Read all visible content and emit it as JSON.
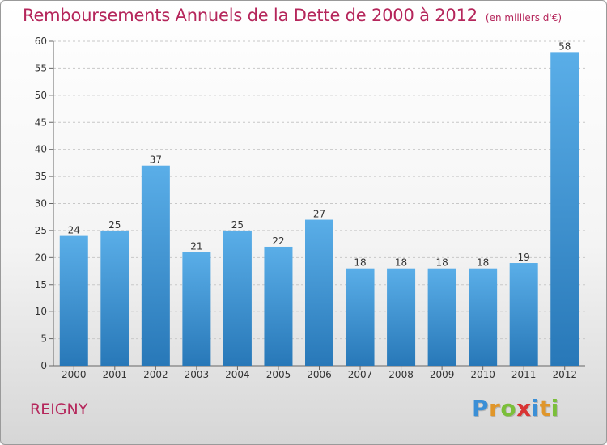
{
  "header": {
    "title": "Remboursements Annuels de la Dette de 2000 à 2012",
    "unit": "(en milliers d'€)"
  },
  "footer": {
    "town": "REIGNY",
    "logo_text": "Proxiti",
    "logo_letters": [
      {
        "ch": "P",
        "color": "#3b8fd6"
      },
      {
        "ch": "r",
        "color": "#e0962a"
      },
      {
        "ch": "o",
        "color": "#7bbf3a"
      },
      {
        "ch": "x",
        "color": "#d93434"
      },
      {
        "ch": "i",
        "color": "#3b8fd6"
      },
      {
        "ch": "t",
        "color": "#e0962a"
      },
      {
        "ch": "i",
        "color": "#7bbf3a"
      }
    ]
  },
  "colors": {
    "title": "#b5265b",
    "bar_top": "#5aaee8",
    "bar_bottom": "#2878b8",
    "grid": "#c8c8c8",
    "axis_text": "#333333"
  },
  "chart_data": {
    "type": "bar",
    "title": "Remboursements Annuels de la Dette de 2000 à 2012",
    "subtitle": "(en milliers d'€)",
    "categories": [
      "2000",
      "2001",
      "2002",
      "2003",
      "2004",
      "2005",
      "2006",
      "2007",
      "2008",
      "2009",
      "2010",
      "2011",
      "2012"
    ],
    "values": [
      24,
      25,
      37,
      21,
      25,
      22,
      27,
      18,
      18,
      18,
      18,
      19,
      58
    ],
    "ylim": [
      0,
      60
    ],
    "yticks": [
      0,
      5,
      10,
      15,
      20,
      25,
      30,
      35,
      40,
      45,
      50,
      55,
      60
    ],
    "grid": "horizontal dashed",
    "legend": "none"
  }
}
